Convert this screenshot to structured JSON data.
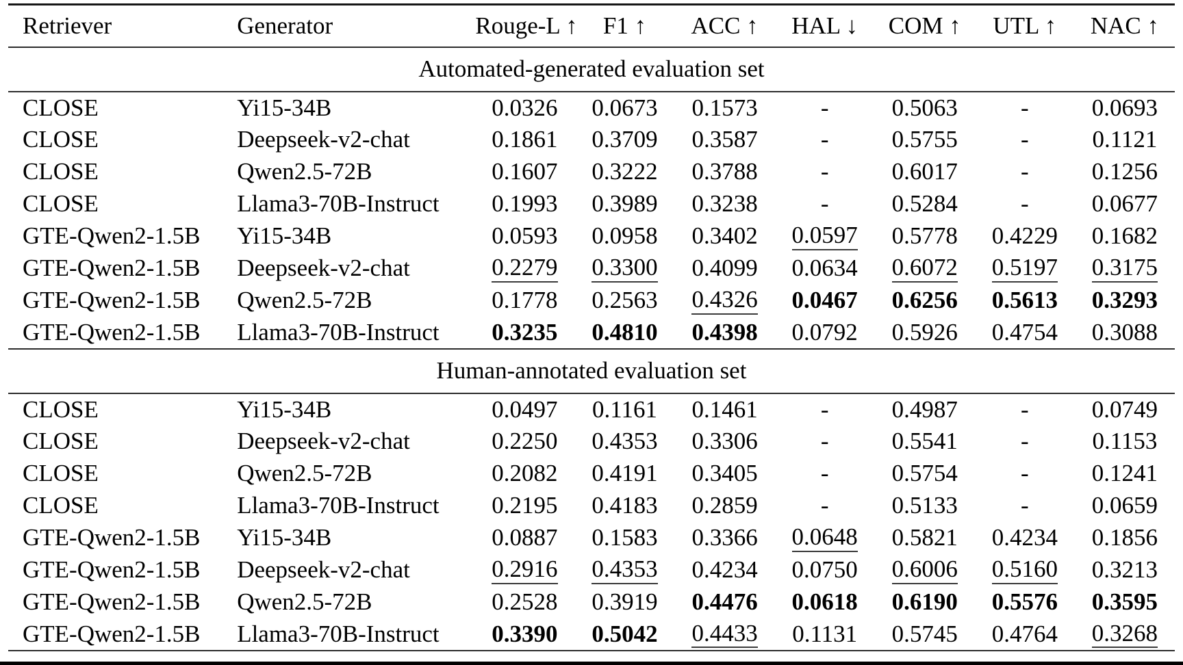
{
  "table": {
    "columns": [
      "Retriever",
      "Generator",
      "Rouge-L ↑",
      "F1 ↑",
      "ACC ↑",
      "HAL ↓",
      "COM ↑",
      "UTL ↑",
      "NAC ↑"
    ],
    "empty_marker": "-",
    "sections": [
      {
        "title": "Automated-generated evaluation set",
        "rows": [
          {
            "retriever": "CLOSE",
            "generator": "Yi15-34B",
            "values": [
              {
                "t": "0.0326"
              },
              {
                "t": "0.0673"
              },
              {
                "t": "0.1573"
              },
              {
                "t": "-"
              },
              {
                "t": "0.5063"
              },
              {
                "t": "-"
              },
              {
                "t": "0.0693"
              }
            ]
          },
          {
            "retriever": "CLOSE",
            "generator": "Deepseek-v2-chat",
            "values": [
              {
                "t": "0.1861"
              },
              {
                "t": "0.3709"
              },
              {
                "t": "0.3587"
              },
              {
                "t": "-"
              },
              {
                "t": "0.5755"
              },
              {
                "t": "-"
              },
              {
                "t": "0.1121"
              }
            ]
          },
          {
            "retriever": "CLOSE",
            "generator": "Qwen2.5-72B",
            "values": [
              {
                "t": "0.1607"
              },
              {
                "t": "0.3222"
              },
              {
                "t": "0.3788"
              },
              {
                "t": "-"
              },
              {
                "t": "0.6017"
              },
              {
                "t": "-"
              },
              {
                "t": "0.1256"
              }
            ]
          },
          {
            "retriever": "CLOSE",
            "generator": "Llama3-70B-Instruct",
            "values": [
              {
                "t": "0.1993"
              },
              {
                "t": "0.3989"
              },
              {
                "t": "0.3238"
              },
              {
                "t": "-"
              },
              {
                "t": "0.5284"
              },
              {
                "t": "-"
              },
              {
                "t": "0.0677"
              }
            ]
          },
          {
            "retriever": "GTE-Qwen2-1.5B",
            "generator": "Yi15-34B",
            "values": [
              {
                "t": "0.0593"
              },
              {
                "t": "0.0958"
              },
              {
                "t": "0.3402"
              },
              {
                "t": "0.0597",
                "s": "underline"
              },
              {
                "t": "0.5778"
              },
              {
                "t": "0.4229"
              },
              {
                "t": "0.1682"
              }
            ]
          },
          {
            "retriever": "GTE-Qwen2-1.5B",
            "generator": "Deepseek-v2-chat",
            "values": [
              {
                "t": "0.2279",
                "s": "underline"
              },
              {
                "t": "0.3300",
                "s": "underline"
              },
              {
                "t": "0.4099"
              },
              {
                "t": "0.0634"
              },
              {
                "t": "0.6072",
                "s": "underline"
              },
              {
                "t": "0.5197",
                "s": "underline"
              },
              {
                "t": "0.3175",
                "s": "underline"
              }
            ]
          },
          {
            "retriever": "GTE-Qwen2-1.5B",
            "generator": "Qwen2.5-72B",
            "values": [
              {
                "t": "0.1778"
              },
              {
                "t": "0.2563"
              },
              {
                "t": "0.4326",
                "s": "underline"
              },
              {
                "t": "0.0467",
                "s": "bold"
              },
              {
                "t": "0.6256",
                "s": "bold"
              },
              {
                "t": "0.5613",
                "s": "bold"
              },
              {
                "t": "0.3293",
                "s": "bold"
              }
            ]
          },
          {
            "retriever": "GTE-Qwen2-1.5B",
            "generator": "Llama3-70B-Instruct",
            "values": [
              {
                "t": "0.3235",
                "s": "bold"
              },
              {
                "t": "0.4810",
                "s": "bold"
              },
              {
                "t": "0.4398",
                "s": "bold"
              },
              {
                "t": "0.0792"
              },
              {
                "t": "0.5926"
              },
              {
                "t": "0.4754"
              },
              {
                "t": "0.3088"
              }
            ]
          }
        ]
      },
      {
        "title": "Human-annotated evaluation set",
        "rows": [
          {
            "retriever": "CLOSE",
            "generator": "Yi15-34B",
            "values": [
              {
                "t": "0.0497"
              },
              {
                "t": "0.1161"
              },
              {
                "t": "0.1461"
              },
              {
                "t": "-"
              },
              {
                "t": "0.4987"
              },
              {
                "t": "-"
              },
              {
                "t": "0.0749"
              }
            ]
          },
          {
            "retriever": "CLOSE",
            "generator": "Deepseek-v2-chat",
            "values": [
              {
                "t": "0.2250"
              },
              {
                "t": "0.4353"
              },
              {
                "t": "0.3306"
              },
              {
                "t": "-"
              },
              {
                "t": "0.5541"
              },
              {
                "t": "-"
              },
              {
                "t": "0.1153"
              }
            ]
          },
          {
            "retriever": "CLOSE",
            "generator": "Qwen2.5-72B",
            "values": [
              {
                "t": "0.2082"
              },
              {
                "t": "0.4191"
              },
              {
                "t": "0.3405"
              },
              {
                "t": "-"
              },
              {
                "t": "0.5754"
              },
              {
                "t": "-"
              },
              {
                "t": "0.1241"
              }
            ]
          },
          {
            "retriever": "CLOSE",
            "generator": "Llama3-70B-Instruct",
            "values": [
              {
                "t": "0.2195"
              },
              {
                "t": "0.4183"
              },
              {
                "t": "0.2859"
              },
              {
                "t": "-"
              },
              {
                "t": "0.5133"
              },
              {
                "t": "-"
              },
              {
                "t": "0.0659"
              }
            ]
          },
          {
            "retriever": "GTE-Qwen2-1.5B",
            "generator": "Yi15-34B",
            "values": [
              {
                "t": "0.0887"
              },
              {
                "t": "0.1583"
              },
              {
                "t": "0.3366"
              },
              {
                "t": "0.0648",
                "s": "underline"
              },
              {
                "t": "0.5821"
              },
              {
                "t": "0.4234"
              },
              {
                "t": "0.1856"
              }
            ]
          },
          {
            "retriever": "GTE-Qwen2-1.5B",
            "generator": "Deepseek-v2-chat",
            "values": [
              {
                "t": "0.2916",
                "s": "underline"
              },
              {
                "t": "0.4353",
                "s": "underline"
              },
              {
                "t": "0.4234"
              },
              {
                "t": "0.0750"
              },
              {
                "t": "0.6006",
                "s": "underline"
              },
              {
                "t": "0.5160",
                "s": "underline"
              },
              {
                "t": "0.3213"
              }
            ]
          },
          {
            "retriever": "GTE-Qwen2-1.5B",
            "generator": "Qwen2.5-72B",
            "values": [
              {
                "t": "0.2528"
              },
              {
                "t": "0.3919"
              },
              {
                "t": "0.4476",
                "s": "bold"
              },
              {
                "t": "0.0618",
                "s": "bold"
              },
              {
                "t": "0.6190",
                "s": "bold"
              },
              {
                "t": "0.5576",
                "s": "bold"
              },
              {
                "t": "0.3595",
                "s": "bold"
              }
            ]
          },
          {
            "retriever": "GTE-Qwen2-1.5B",
            "generator": "Llama3-70B-Instruct",
            "values": [
              {
                "t": "0.3390",
                "s": "bold"
              },
              {
                "t": "0.5042",
                "s": "bold"
              },
              {
                "t": "0.4433",
                "s": "underline"
              },
              {
                "t": "0.1131"
              },
              {
                "t": "0.5745"
              },
              {
                "t": "0.4764"
              },
              {
                "t": "0.3268",
                "s": "underline"
              }
            ]
          }
        ]
      }
    ]
  }
}
